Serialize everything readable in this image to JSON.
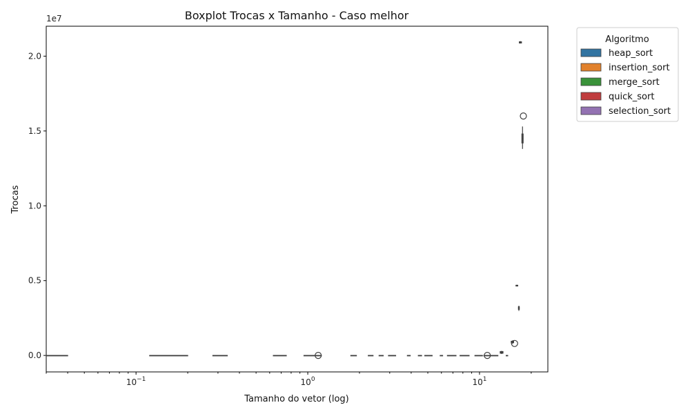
{
  "chart_data": {
    "type": "boxplot",
    "title": "Boxplot Trocas x Tamanho - Caso melhor",
    "xlabel": "Tamanho do vetor (log)",
    "ylabel": "Trocas",
    "x_scale": "log",
    "xlim": [
      0.03,
      25
    ],
    "ylim": [
      -1100000,
      22000000
    ],
    "y_offset_label": "1e7",
    "y_ticks": [
      {
        "value": 0,
        "label": "0.0"
      },
      {
        "value": 5000000,
        "label": "0.5"
      },
      {
        "value": 10000000,
        "label": "1.0"
      },
      {
        "value": 15000000,
        "label": "1.5"
      },
      {
        "value": 20000000,
        "label": "2.0"
      }
    ],
    "x_ticks": [
      {
        "value": 0.1,
        "base": "10",
        "exp": "−1"
      },
      {
        "value": 1,
        "base": "10",
        "exp": "0"
      },
      {
        "value": 10,
        "base": "10",
        "exp": "1"
      }
    ],
    "legend": {
      "title": "Algoritmo",
      "placement": "outside-top-right",
      "entries": [
        {
          "name": "heap_sort",
          "color": "#3274a1"
        },
        {
          "name": "insertion_sort",
          "color": "#e1812c"
        },
        {
          "name": "merge_sort",
          "color": "#3a923a"
        },
        {
          "name": "quick_sort",
          "color": "#c03d3e"
        },
        {
          "name": "selection_sort",
          "color": "#9372b2"
        }
      ]
    },
    "boxes": [
      {
        "x0": 0.03,
        "x1": 0.04,
        "q1": 0,
        "med": 0,
        "q3": 0,
        "wlo": 0,
        "whi": 0
      },
      {
        "x0": 0.12,
        "x1": 0.2,
        "q1": 0,
        "med": 0,
        "q3": 0,
        "wlo": 0,
        "whi": 0
      },
      {
        "x0": 0.28,
        "x1": 0.34,
        "q1": 0,
        "med": 0,
        "q3": 0,
        "wlo": 0,
        "whi": 0
      },
      {
        "x0": 0.63,
        "x1": 0.75,
        "q1": 0,
        "med": 0,
        "q3": 0,
        "wlo": 0,
        "whi": 0
      },
      {
        "x0": 0.95,
        "x1": 1.2,
        "q1": 0,
        "med": 0,
        "q3": 0,
        "wlo": 0,
        "whi": 0
      },
      {
        "x0": 1.78,
        "x1": 1.92,
        "q1": 0,
        "med": 0,
        "q3": 0,
        "wlo": 0,
        "whi": 0
      },
      {
        "x0": 2.25,
        "x1": 2.4,
        "q1": 0,
        "med": 0,
        "q3": 0,
        "wlo": 0,
        "whi": 0
      },
      {
        "x0": 2.6,
        "x1": 2.75,
        "q1": 0,
        "med": 0,
        "q3": 0,
        "wlo": 0,
        "whi": 0
      },
      {
        "x0": 2.95,
        "x1": 3.25,
        "q1": 0,
        "med": 0,
        "q3": 0,
        "wlo": 0,
        "whi": 0
      },
      {
        "x0": 3.8,
        "x1": 3.95,
        "q1": 0,
        "med": 0,
        "q3": 0,
        "wlo": 0,
        "whi": 0
      },
      {
        "x0": 4.4,
        "x1": 4.6,
        "q1": 0,
        "med": 0,
        "q3": 0,
        "wlo": 0,
        "whi": 0
      },
      {
        "x0": 4.8,
        "x1": 5.3,
        "q1": 0,
        "med": 0,
        "q3": 0,
        "wlo": 0,
        "whi": 0
      },
      {
        "x0": 5.9,
        "x1": 6.1,
        "q1": 0,
        "med": 0,
        "q3": 0,
        "wlo": 0,
        "whi": 0
      },
      {
        "x0": 6.5,
        "x1": 7.3,
        "q1": 0,
        "med": 0,
        "q3": 0,
        "wlo": 0,
        "whi": 0
      },
      {
        "x0": 7.7,
        "x1": 8.7,
        "q1": 0,
        "med": 0,
        "q3": 0,
        "wlo": 0,
        "whi": 0
      },
      {
        "x0": 9.4,
        "x1": 10.4,
        "q1": 0,
        "med": 0,
        "q3": 0,
        "wlo": 0,
        "whi": 0
      },
      {
        "x0": 10.6,
        "x1": 12.8,
        "q1": 0,
        "med": 0,
        "q3": 0,
        "wlo": 0,
        "whi": 0
      },
      {
        "x0": 13.2,
        "x1": 13.7,
        "q1": 150000,
        "med": 200000,
        "q3": 260000,
        "wlo": 100000,
        "whi": 300000
      },
      {
        "x0": 14.3,
        "x1": 14.6,
        "q1": 0,
        "med": 0,
        "q3": 0,
        "wlo": 0,
        "whi": 0
      },
      {
        "x0": 15.3,
        "x1": 15.8,
        "q1": 850000,
        "med": 900000,
        "q3": 950000,
        "wlo": 780000,
        "whi": 1000000
      },
      {
        "x0": 16.3,
        "x1": 16.7,
        "q1": 4640000,
        "med": 4660000,
        "q3": 4690000,
        "wlo": 4620000,
        "whi": 4720000
      },
      {
        "x0": 16.85,
        "x1": 17.05,
        "q1": 3080000,
        "med": 3150000,
        "q3": 3250000,
        "wlo": 2980000,
        "whi": 3320000
      },
      {
        "x0": 17.05,
        "x1": 17.55,
        "q1": 20880000,
        "med": 20900000,
        "q3": 20960000,
        "wlo": 20850000,
        "whi": 21000000
      },
      {
        "x0": 17.65,
        "x1": 17.95,
        "q1": 14200000,
        "med": 14500000,
        "q3": 14800000,
        "wlo": 13800000,
        "whi": 15300000
      }
    ],
    "outliers": [
      {
        "x": 1.15,
        "y": 0
      },
      {
        "x": 11.1,
        "y": 0
      },
      {
        "x": 16.0,
        "y": 800000
      },
      {
        "x": 18.0,
        "y": 16000000
      }
    ]
  }
}
